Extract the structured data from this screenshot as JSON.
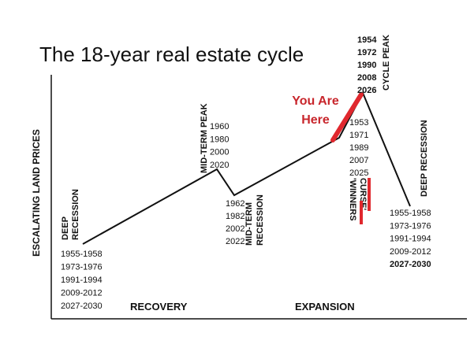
{
  "title": "The 18-year real estate cycle",
  "y_axis_label": "ESCALATING LAND PRICES",
  "phases": [
    "RECOVERY",
    "EXPANSION"
  ],
  "you_are_here": [
    "You Are",
    "Here"
  ],
  "deep_recession_left": {
    "label": [
      "DEEP",
      "RECESSION"
    ],
    "years": [
      "1955-1958",
      "1973-1976",
      "1991-1994",
      "2009-2012",
      "2027-2030"
    ]
  },
  "mid_term_peak": {
    "label": "MID-TERM PEAK",
    "years": [
      "1960",
      "1980",
      "2000",
      "2020"
    ]
  },
  "mid_term_recession": {
    "label": [
      "MID-TERM",
      "RECESSION"
    ],
    "years": [
      "1962",
      "1982",
      "2002",
      "2022"
    ]
  },
  "cycle_peak": {
    "label": "CYCLE PEAK",
    "years": [
      "1954",
      "1972",
      "1990",
      "2008",
      "2026"
    ]
  },
  "winners_curse": {
    "label": [
      "'WINNERS",
      "CURSE'"
    ],
    "years": [
      "1953",
      "1971",
      "1989",
      "2007",
      "2025"
    ]
  },
  "deep_recession_right": {
    "label": "DEEP RECESSION",
    "years": [
      "1955-1958",
      "1973-1976",
      "1991-1994",
      "2009-2012",
      "2027-2030"
    ]
  }
}
